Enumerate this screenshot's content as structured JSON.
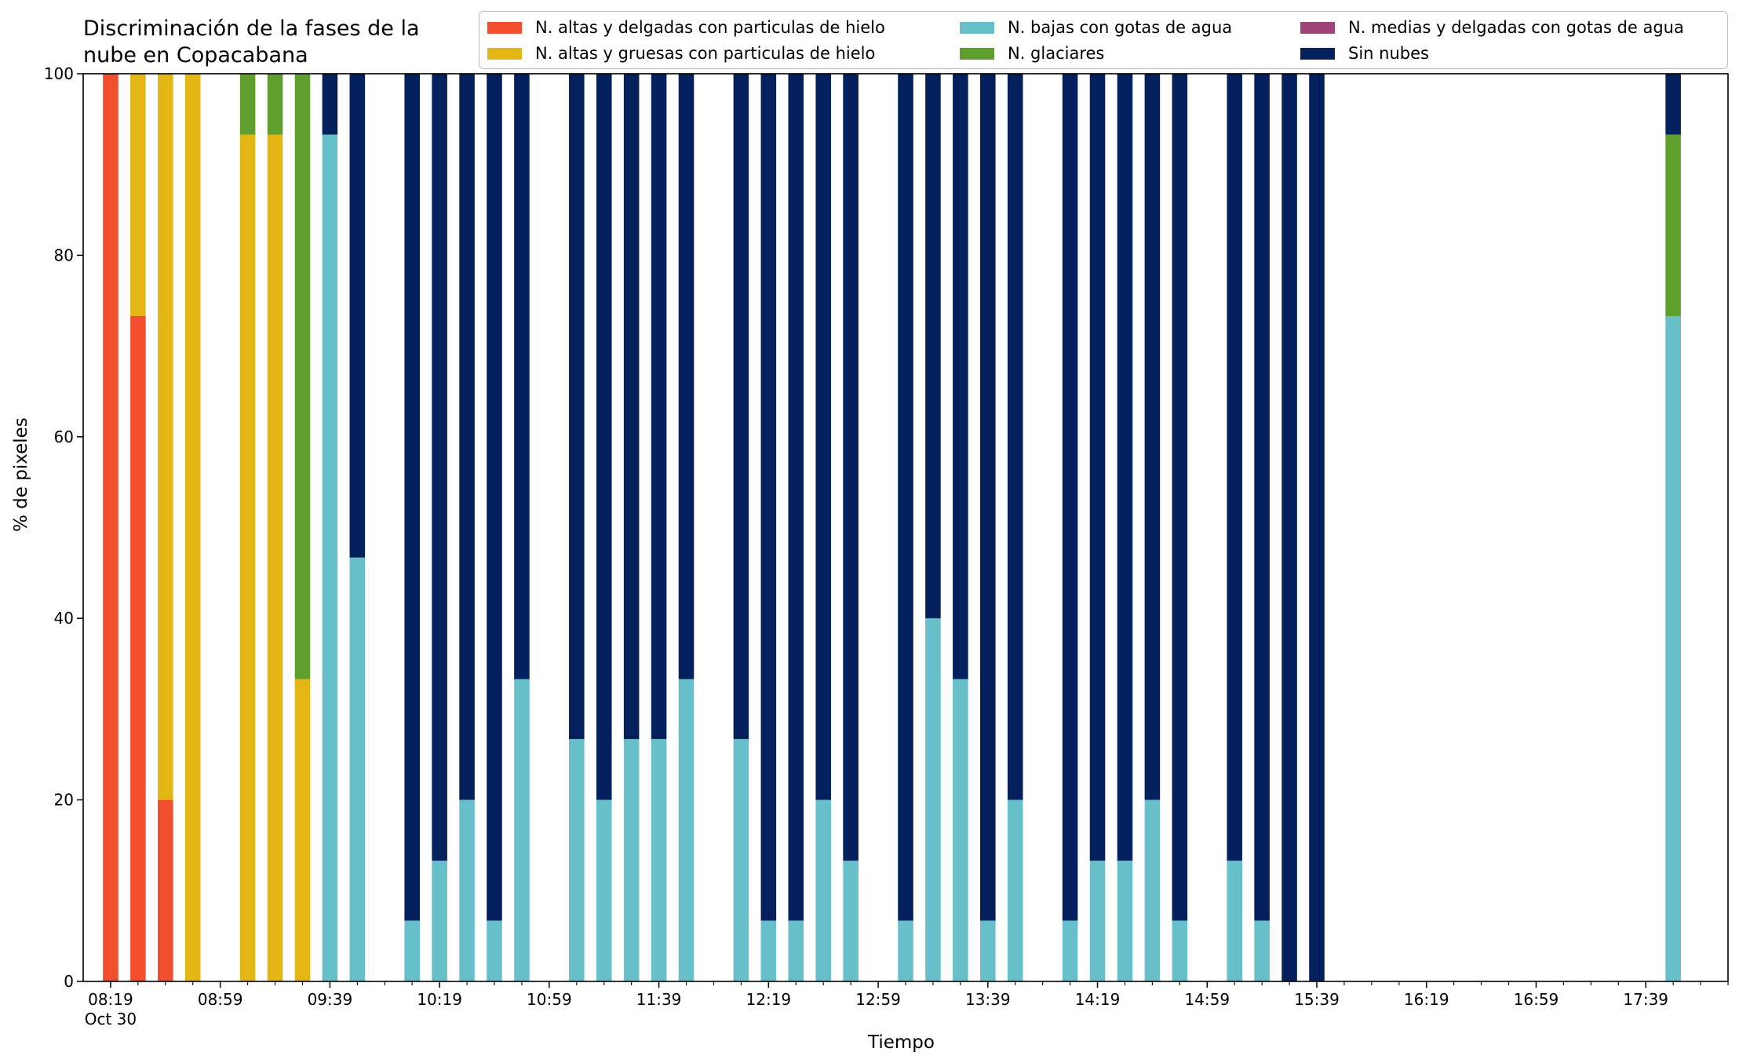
{
  "chart_data": {
    "type": "bar",
    "stacked": true,
    "title": "Discriminación de la fases de la nube en Copacabana",
    "title_lines": [
      "Discriminación de la fases de la",
      "nube en Copacabana"
    ],
    "xlabel": "Tiempo",
    "ylabel": "% de pixeles",
    "ylim": [
      0,
      100
    ],
    "yticks": [
      0,
      20,
      40,
      60,
      80,
      100
    ],
    "xlim_minutes_after_0819": [
      -10,
      590
    ],
    "xticks": [
      {
        "label": "08:19",
        "sublabel": "Oct 30",
        "minute": 0
      },
      {
        "label": "08:59",
        "minute": 40
      },
      {
        "label": "09:39",
        "minute": 80
      },
      {
        "label": "10:19",
        "minute": 120
      },
      {
        "label": "10:59",
        "minute": 160
      },
      {
        "label": "11:39",
        "minute": 200
      },
      {
        "label": "12:19",
        "minute": 240
      },
      {
        "label": "12:59",
        "minute": 280
      },
      {
        "label": "13:39",
        "minute": 320
      },
      {
        "label": "14:19",
        "minute": 360
      },
      {
        "label": "14:59",
        "minute": 400
      },
      {
        "label": "15:39",
        "minute": 440
      },
      {
        "label": "16:19",
        "minute": 480
      },
      {
        "label": "16:59",
        "minute": 520
      },
      {
        "label": "17:39",
        "minute": 560
      }
    ],
    "legend_position": "top-right",
    "series": [
      {
        "name": "N. altas y delgadas con particulas de hielo",
        "color": "#f14e2d"
      },
      {
        "name": "N. altas y gruesas con particulas de hielo",
        "color": "#e3b515"
      },
      {
        "name": "N. bajas con gotas de agua",
        "color": "#67bfca"
      },
      {
        "name": "N. glaciares",
        "color": "#5e9f2e"
      },
      {
        "name": "N. medias y delgadas con gotas de agua",
        "color": "#a04379"
      },
      {
        "name": "Sin nubes",
        "color": "#04205d"
      }
    ],
    "bars": [
      {
        "time": "08:19",
        "values": [
          100,
          0,
          0,
          0,
          0,
          0
        ]
      },
      {
        "time": "08:29",
        "values": [
          73.3,
          26.7,
          0,
          0,
          0,
          0
        ]
      },
      {
        "time": "08:39",
        "values": [
          20,
          80,
          0,
          0,
          0,
          0
        ]
      },
      {
        "time": "08:49",
        "values": [
          0,
          100,
          0,
          0,
          0,
          0
        ]
      },
      {
        "time": "09:09",
        "values": [
          0,
          93.3,
          0,
          6.7,
          0,
          0
        ]
      },
      {
        "time": "09:19",
        "values": [
          0,
          93.3,
          0,
          6.7,
          0,
          0
        ]
      },
      {
        "time": "09:29",
        "values": [
          0,
          33.3,
          0,
          66.7,
          0,
          0
        ]
      },
      {
        "time": "09:39",
        "values": [
          0,
          0,
          93.3,
          0,
          0,
          6.7
        ]
      },
      {
        "time": "09:49",
        "values": [
          0,
          0,
          46.7,
          0,
          0,
          53.3
        ]
      },
      {
        "time": "10:09",
        "values": [
          0,
          0,
          6.7,
          0,
          0,
          93.3
        ]
      },
      {
        "time": "10:19",
        "values": [
          0,
          0,
          13.3,
          0,
          0,
          86.7
        ]
      },
      {
        "time": "10:29",
        "values": [
          0,
          0,
          20,
          0,
          0,
          80
        ]
      },
      {
        "time": "10:39",
        "values": [
          0,
          0,
          6.7,
          0,
          0,
          93.3
        ]
      },
      {
        "time": "10:49",
        "values": [
          0,
          0,
          33.3,
          0,
          0,
          66.7
        ]
      },
      {
        "time": "11:09",
        "values": [
          0,
          0,
          26.7,
          0,
          0,
          73.3
        ]
      },
      {
        "time": "11:19",
        "values": [
          0,
          0,
          20,
          0,
          0,
          80
        ]
      },
      {
        "time": "11:29",
        "values": [
          0,
          0,
          26.7,
          0,
          0,
          73.3
        ]
      },
      {
        "time": "11:39",
        "values": [
          0,
          0,
          26.7,
          0,
          0,
          73.3
        ]
      },
      {
        "time": "11:49",
        "values": [
          0,
          0,
          33.3,
          0,
          0,
          66.7
        ]
      },
      {
        "time": "12:09",
        "values": [
          0,
          0,
          26.7,
          0,
          0,
          73.3
        ]
      },
      {
        "time": "12:19",
        "values": [
          0,
          0,
          6.7,
          0,
          0,
          93.3
        ]
      },
      {
        "time": "12:29",
        "values": [
          0,
          0,
          6.7,
          0,
          0,
          93.3
        ]
      },
      {
        "time": "12:39",
        "values": [
          0,
          0,
          20,
          0,
          0,
          80
        ]
      },
      {
        "time": "12:49",
        "values": [
          0,
          0,
          13.3,
          0,
          0,
          86.7
        ]
      },
      {
        "time": "13:09",
        "values": [
          0,
          0,
          6.7,
          0,
          0,
          93.3
        ]
      },
      {
        "time": "13:19",
        "values": [
          0,
          0,
          40,
          0,
          0,
          60
        ]
      },
      {
        "time": "13:29",
        "values": [
          0,
          0,
          33.3,
          0,
          0,
          66.7
        ]
      },
      {
        "time": "13:39",
        "values": [
          0,
          0,
          6.7,
          0,
          0,
          93.3
        ]
      },
      {
        "time": "13:49",
        "values": [
          0,
          0,
          20,
          0,
          0,
          80
        ]
      },
      {
        "time": "14:09",
        "values": [
          0,
          0,
          6.7,
          0,
          0,
          93.3
        ]
      },
      {
        "time": "14:19",
        "values": [
          0,
          0,
          13.3,
          0,
          0,
          86.7
        ]
      },
      {
        "time": "14:29",
        "values": [
          0,
          0,
          13.3,
          0,
          0,
          86.7
        ]
      },
      {
        "time": "14:39",
        "values": [
          0,
          0,
          20,
          0,
          0,
          80
        ]
      },
      {
        "time": "14:49",
        "values": [
          0,
          0,
          6.7,
          0,
          0,
          93.3
        ]
      },
      {
        "time": "15:09",
        "values": [
          0,
          0,
          13.3,
          0,
          0,
          86.7
        ]
      },
      {
        "time": "15:19",
        "values": [
          0,
          0,
          6.7,
          0,
          0,
          93.3
        ]
      },
      {
        "time": "15:29",
        "values": [
          0,
          0,
          0,
          0,
          0,
          100
        ]
      },
      {
        "time": "15:39",
        "values": [
          0,
          0,
          0,
          0,
          0,
          100
        ]
      },
      {
        "time": "17:49",
        "values": [
          0,
          0,
          73.3,
          20,
          0,
          6.7
        ]
      }
    ]
  }
}
